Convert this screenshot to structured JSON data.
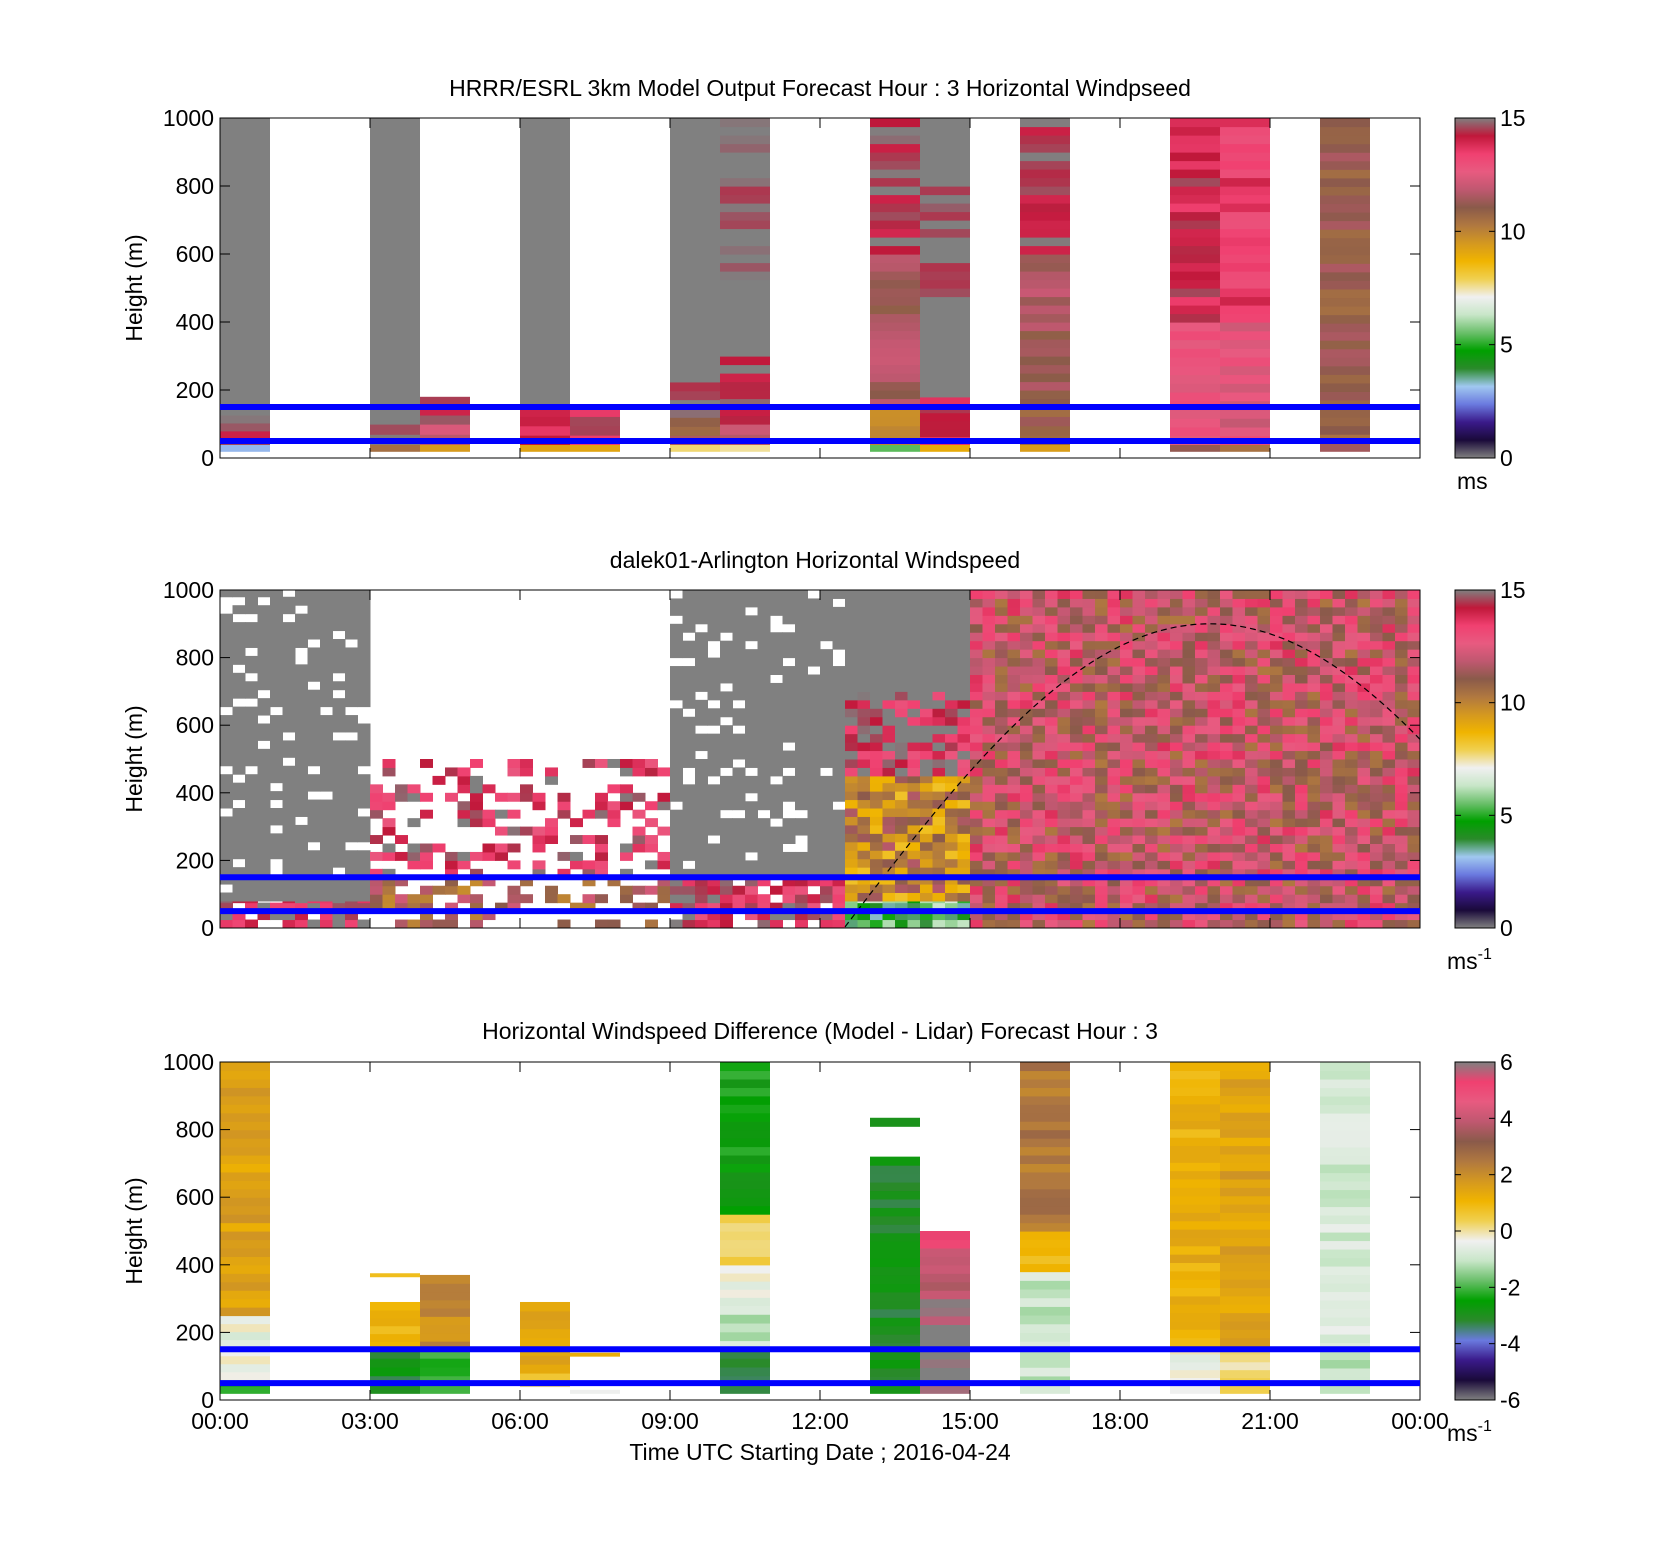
{
  "colors": {
    "gray": "#808080",
    "ref_line": "#0000ff",
    "colormap_speed": [
      "#808080",
      "#1a0a3a",
      "#3a1a8a",
      "#6a7adf",
      "#a0c8f0",
      "#2a8a2a",
      "#00a000",
      "#6abf6a",
      "#c8e6c8",
      "#f0f0f0",
      "#f0d050",
      "#f0b400",
      "#d49820",
      "#b07840",
      "#8a5a4a",
      "#c05870",
      "#e85a80",
      "#f04070",
      "#c0183a",
      "#808080"
    ],
    "colormap_diff": [
      "#808080",
      "#1a0a3a",
      "#3a1a8a",
      "#6a7adf",
      "#2a8a2a",
      "#00a000",
      "#6abf6a",
      "#c8e6c8",
      "#f0f0f0",
      "#f0d050",
      "#f0b400",
      "#d49820",
      "#b07840",
      "#8a5a4a",
      "#c05870",
      "#e85a80",
      "#f04070",
      "#808080"
    ]
  },
  "xaxis": {
    "ticks": [
      "00:00",
      "03:00",
      "06:00",
      "09:00",
      "12:00",
      "15:00",
      "18:00",
      "21:00",
      "00:00"
    ],
    "label": "Time UTC  Starting Date ; 2016-04-24"
  },
  "chart_data": [
    {
      "type": "heatmap",
      "title": "HRRR/ESRL 3km Model Output   Forecast Hour : 3 Horizontal Windpseed",
      "ylabel": "Height (m)",
      "ylim": [
        0,
        1000
      ],
      "yticks": [
        "1000",
        "800",
        "600",
        "400",
        "200",
        "0"
      ],
      "colorbar": {
        "ticks": [
          "15",
          "10",
          "5",
          "0"
        ],
        "range": [
          0,
          15
        ],
        "unit": "ms"
      },
      "reference_lines_m": [
        150,
        50
      ],
      "x_range_hours": [
        0,
        24
      ],
      "columns": [
        {
          "t0": 0,
          "t1": 1,
          "segments": [
            [
              20,
              40,
              3
            ],
            [
              40,
              80,
              14.5
            ],
            [
              80,
              150,
              15
            ],
            [
              150,
              1000,
              0
            ]
          ]
        },
        {
          "t0": 3,
          "t1": 4,
          "segments": [
            [
              20,
              40,
              11
            ],
            [
              40,
              100,
              14.5
            ],
            [
              100,
              1000,
              0
            ]
          ]
        },
        {
          "t0": 4,
          "t1": 5,
          "segments": [
            [
              20,
              40,
              9.5
            ],
            [
              40,
              100,
              12
            ],
            [
              100,
              180,
              14.5
            ]
          ]
        },
        {
          "t0": 6,
          "t1": 7,
          "segments": [
            [
              20,
              40,
              9.5
            ],
            [
              40,
              150,
              14
            ],
            [
              150,
              1000,
              0
            ]
          ]
        },
        {
          "t0": 7,
          "t1": 8,
          "segments": [
            [
              20,
              40,
              9.5
            ],
            [
              40,
              150,
              14
            ]
          ]
        },
        {
          "t0": 9,
          "t1": 10,
          "segments": [
            [
              20,
              40,
              7.8
            ],
            [
              40,
              120,
              11
            ],
            [
              120,
              250,
              14.8
            ],
            [
              250,
              1000,
              0
            ]
          ]
        },
        {
          "t0": 10,
          "t1": 11,
          "segments": [
            [
              20,
              40,
              7.6
            ],
            [
              40,
              100,
              12
            ],
            [
              100,
              300,
              14.5
            ],
            [
              300,
              500,
              0
            ],
            [
              500,
              1000,
              15
            ]
          ]
        },
        {
          "t0": 13,
          "t1": 14,
          "segments": [
            [
              20,
              40,
              5
            ],
            [
              40,
              150,
              10
            ],
            [
              150,
              600,
              11.5
            ],
            [
              600,
              1000,
              14.5
            ]
          ]
        },
        {
          "t0": 14,
          "t1": 15,
          "segments": [
            [
              20,
              40,
              9.5
            ],
            [
              40,
              180,
              14
            ],
            [
              180,
              450,
              0
            ],
            [
              450,
              800,
              15
            ],
            [
              800,
              1000,
              0
            ]
          ]
        },
        {
          "t0": 16,
          "t1": 17,
          "segments": [
            [
              20,
              40,
              9.5
            ],
            [
              40,
              150,
              11
            ],
            [
              150,
              600,
              11.5
            ],
            [
              600,
              1000,
              14.5
            ]
          ]
        },
        {
          "t0": 19,
          "t1": 20,
          "segments": [
            [
              20,
              40,
              11
            ],
            [
              40,
              400,
              12.5
            ],
            [
              400,
              1000,
              14
            ]
          ]
        },
        {
          "t0": 20,
          "t1": 21,
          "segments": [
            [
              20,
              40,
              11
            ],
            [
              40,
              400,
              12.5
            ],
            [
              400,
              1000,
              13.5
            ]
          ]
        },
        {
          "t0": 22,
          "t1": 23,
          "segments": [
            [
              20,
              1000,
              11
            ]
          ]
        }
      ]
    },
    {
      "type": "heatmap",
      "title": "dalek01-Arlington  Horizontal Windspeed",
      "ylabel": "Height (m)",
      "ylim": [
        0,
        1000
      ],
      "yticks": [
        "1000",
        "800",
        "600",
        "400",
        "200",
        "0"
      ],
      "colorbar": {
        "ticks": [
          "15",
          "10",
          "5",
          "0"
        ],
        "range": [
          0,
          15
        ],
        "unit": "ms",
        "unit_exponent": "-1"
      },
      "reference_lines_m": [
        150,
        50
      ],
      "x_range_hours": [
        0,
        24
      ],
      "regions": [
        {
          "t0": 0,
          "t1": 3,
          "segments": [
            [
              0,
              80,
              14.5
            ],
            [
              80,
              1000,
              0
            ]
          ],
          "texture": "patchy"
        },
        {
          "t0": 3,
          "t1": 9,
          "segments": [
            [
              0,
              150,
              11
            ],
            [
              150,
              500,
              14
            ]
          ],
          "texture": "sparse"
        },
        {
          "t0": 9,
          "t1": 12.5,
          "segments": [
            [
              0,
              150,
              14
            ],
            [
              150,
              1000,
              0
            ]
          ],
          "texture": "patchy"
        },
        {
          "t0": 12.5,
          "t1": 15,
          "segments": [
            [
              0,
              80,
              5
            ],
            [
              80,
              450,
              10
            ],
            [
              450,
              700,
              14.5
            ],
            [
              700,
              1000,
              0
            ]
          ],
          "texture": "streaky"
        },
        {
          "t0": 15,
          "t1": 24,
          "segments": [
            [
              0,
              1000,
              12
            ]
          ],
          "texture": "streaky"
        }
      ],
      "overlay_curve": {
        "style": "dashed",
        "peak_time_hours": 19.8,
        "peak_height_m": 900
      }
    },
    {
      "type": "heatmap",
      "title": "Horizontal Windspeed Difference (Model - Lidar) Forecast Hour : 3",
      "xlabel": "Time UTC  Starting Date ; 2016-04-24",
      "ylabel": "Height (m)",
      "ylim": [
        0,
        1000
      ],
      "yticks": [
        "1000",
        "800",
        "600",
        "400",
        "200",
        "0"
      ],
      "colorbar": {
        "ticks": [
          "6",
          "4",
          "2",
          "0",
          "-2",
          "-4",
          "-6"
        ],
        "range": [
          -6,
          6
        ],
        "unit": "ms",
        "unit_exponent": "-1"
      },
      "reference_lines_m": [
        150,
        50
      ],
      "x_range_hours": [
        0,
        24
      ],
      "columns": [
        {
          "t0": 0,
          "t1": 1,
          "segments": [
            [
              20,
              60,
              -2
            ],
            [
              60,
              250,
              -0.5
            ],
            [
              250,
              1000,
              1.5
            ]
          ]
        },
        {
          "t0": 3,
          "t1": 4,
          "segments": [
            [
              20,
              150,
              -3
            ],
            [
              150,
              290,
              1
            ]
          ]
        },
        {
          "t0": 3,
          "t1": 4,
          "segments": [
            [
              365,
              375,
              1
            ]
          ]
        },
        {
          "t0": 4,
          "t1": 5,
          "segments": [
            [
              20,
              150,
              -2
            ],
            [
              150,
              370,
              2
            ]
          ]
        },
        {
          "t0": 6,
          "t1": 7,
          "segments": [
            [
              40,
              80,
              0.5
            ],
            [
              80,
              290,
              1.5
            ]
          ]
        },
        {
          "t0": 7,
          "t1": 8,
          "segments": [
            [
              20,
              30,
              -0.5
            ],
            [
              130,
              140,
              1.5
            ]
          ]
        },
        {
          "t0": 10,
          "t1": 11,
          "segments": [
            [
              20,
              150,
              -3
            ],
            [
              150,
              280,
              -1
            ],
            [
              280,
              400,
              -0.5
            ],
            [
              400,
              550,
              0.5
            ],
            [
              550,
              1000,
              -2.5
            ]
          ]
        },
        {
          "t0": 13,
          "t1": 14,
          "segments": [
            [
              20,
              720,
              -3
            ],
            [
              810,
              835,
              -3
            ]
          ]
        },
        {
          "t0": 14,
          "t1": 15,
          "segments": [
            [
              20,
              300,
              6
            ],
            [
              300,
              450,
              4
            ],
            [
              450,
              500,
              5
            ]
          ]
        },
        {
          "t0": 16,
          "t1": 17,
          "segments": [
            [
              20,
              380,
              -1
            ],
            [
              380,
              500,
              1
            ],
            [
              500,
              1000,
              2.5
            ]
          ]
        },
        {
          "t0": 19,
          "t1": 20,
          "segments": [
            [
              20,
              160,
              -0.3
            ],
            [
              160,
              1000,
              1.2
            ]
          ]
        },
        {
          "t0": 20,
          "t1": 21,
          "segments": [
            [
              20,
              160,
              0
            ],
            [
              160,
              1000,
              1.5
            ]
          ]
        },
        {
          "t0": 22,
          "t1": 23,
          "segments": [
            [
              20,
              120,
              -1
            ],
            [
              120,
              1000,
              -0.8
            ]
          ]
        }
      ]
    }
  ]
}
